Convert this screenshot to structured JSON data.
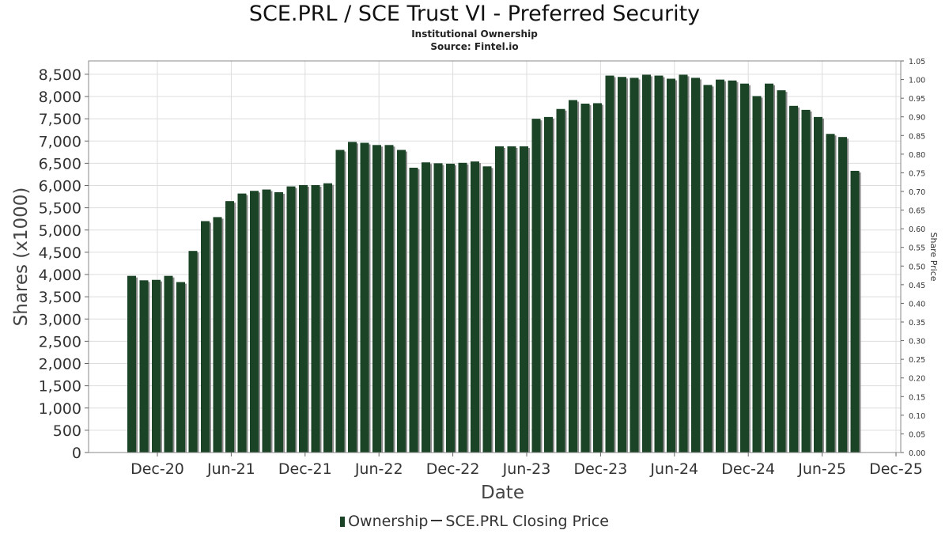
{
  "header": {
    "title": "SCE.PRL / SCE Trust VI - Preferred Security",
    "subtitle": "Institutional Ownership",
    "source": "Source: Fintel.io"
  },
  "legend": {
    "ownership": "Ownership",
    "price": "SCE.PRL Closing Price"
  },
  "colors": {
    "bar": "#1b4427",
    "bar_shadow": "#8a8a8a",
    "grid": "#dddddd",
    "frame": "#888888"
  },
  "chart_data": {
    "type": "bar",
    "xlabel": "Date",
    "ylabel": "Shares (x1000)",
    "y2label": "Share Price",
    "ylim": [
      0,
      8800
    ],
    "y2lim": [
      0,
      1.05
    ],
    "yticks": [
      0,
      500,
      1000,
      1500,
      2000,
      2500,
      3000,
      3500,
      4000,
      4500,
      5000,
      5500,
      6000,
      6500,
      7000,
      7500,
      8000,
      8500
    ],
    "ytick_labels": [
      "0",
      "500",
      "1,000",
      "1,500",
      "2,000",
      "2,500",
      "3,000",
      "3,500",
      "4,000",
      "4,500",
      "5,000",
      "5,500",
      "6,000",
      "6,500",
      "7,000",
      "7,500",
      "8,000",
      "8,500"
    ],
    "y2ticks": [
      "0.00",
      "0.05",
      "0.10",
      "0.15",
      "0.20",
      "0.25",
      "0.30",
      "0.35",
      "0.40",
      "0.45",
      "0.50",
      "0.55",
      "0.60",
      "0.65",
      "0.70",
      "0.75",
      "0.80",
      "0.85",
      "0.90",
      "0.95",
      "1.00",
      "1.05"
    ],
    "xtick_labels": [
      "Dec-20",
      "Jun-21",
      "Dec-21",
      "Jun-22",
      "Dec-22",
      "Jun-23",
      "Dec-23",
      "Jun-24",
      "Dec-24",
      "Jun-25",
      "Dec-25"
    ],
    "grid": true,
    "legend_position": "bottom",
    "series": [
      {
        "name": "Ownership",
        "values": [
          3970,
          3870,
          3880,
          3970,
          3830,
          4530,
          5200,
          5290,
          5650,
          5820,
          5880,
          5910,
          5850,
          5980,
          6010,
          6010,
          6050,
          6800,
          6980,
          6960,
          6910,
          6910,
          6800,
          6400,
          6520,
          6500,
          6490,
          6510,
          6540,
          6430,
          6880,
          6880,
          6880,
          7500,
          7540,
          7720,
          7920,
          7840,
          7850,
          8470,
          8440,
          8420,
          8490,
          8470,
          8400,
          8490,
          8420,
          8260,
          8380,
          8360,
          8290,
          8010,
          8290,
          8140,
          7790,
          7700,
          7540,
          7160,
          7090,
          6330
        ]
      }
    ]
  }
}
